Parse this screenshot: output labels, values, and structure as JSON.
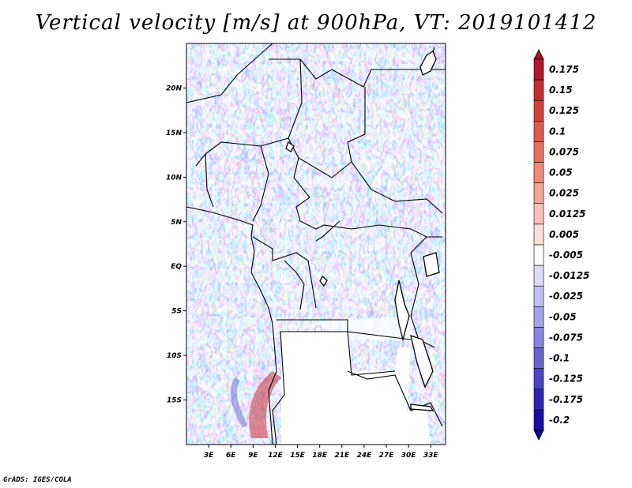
{
  "title": "Vertical velocity [m/s] at 900hPa, VT: 2019101412",
  "credit": "GrADS: IGES/COLA",
  "map": {
    "lat_labels": [
      "20N",
      "15N",
      "10N",
      "5N",
      "EQ",
      "5S",
      "10S",
      "15S"
    ],
    "lat_values": [
      20,
      15,
      10,
      5,
      0,
      -5,
      -10,
      -15
    ],
    "lon_labels": [
      "3E",
      "6E",
      "9E",
      "12E",
      "15E",
      "18E",
      "21E",
      "24E",
      "27E",
      "30E",
      "33E"
    ],
    "lon_values": [
      3,
      6,
      9,
      12,
      15,
      18,
      21,
      24,
      27,
      30,
      33
    ],
    "lon_range": [
      0,
      35
    ],
    "lat_range": [
      -20,
      25
    ]
  },
  "colorbar": {
    "labels": [
      "0.175",
      "0.15",
      "0.125",
      "0.1",
      "0.075",
      "0.05",
      "0.025",
      "0.0125",
      "0.005",
      "-0.005",
      "-0.0125",
      "-0.025",
      "-0.05",
      "-0.075",
      "-0.1",
      "-0.125",
      "-0.175",
      "-0.2"
    ],
    "colors": [
      "#b2182b",
      "#c42c30",
      "#d2423c",
      "#dd5a4c",
      "#e67260",
      "#ee8b78",
      "#f4a594",
      "#f9c2b4",
      "#fde0d6",
      "#ffffff",
      "#dcdcf8",
      "#c1c0f2",
      "#a4a3ea",
      "#8684e0",
      "#6764d4",
      "#4845c6",
      "#2b27b6",
      "#1410a2"
    ],
    "top_color": "#a11421",
    "bottom_color": "#0c0896"
  }
}
